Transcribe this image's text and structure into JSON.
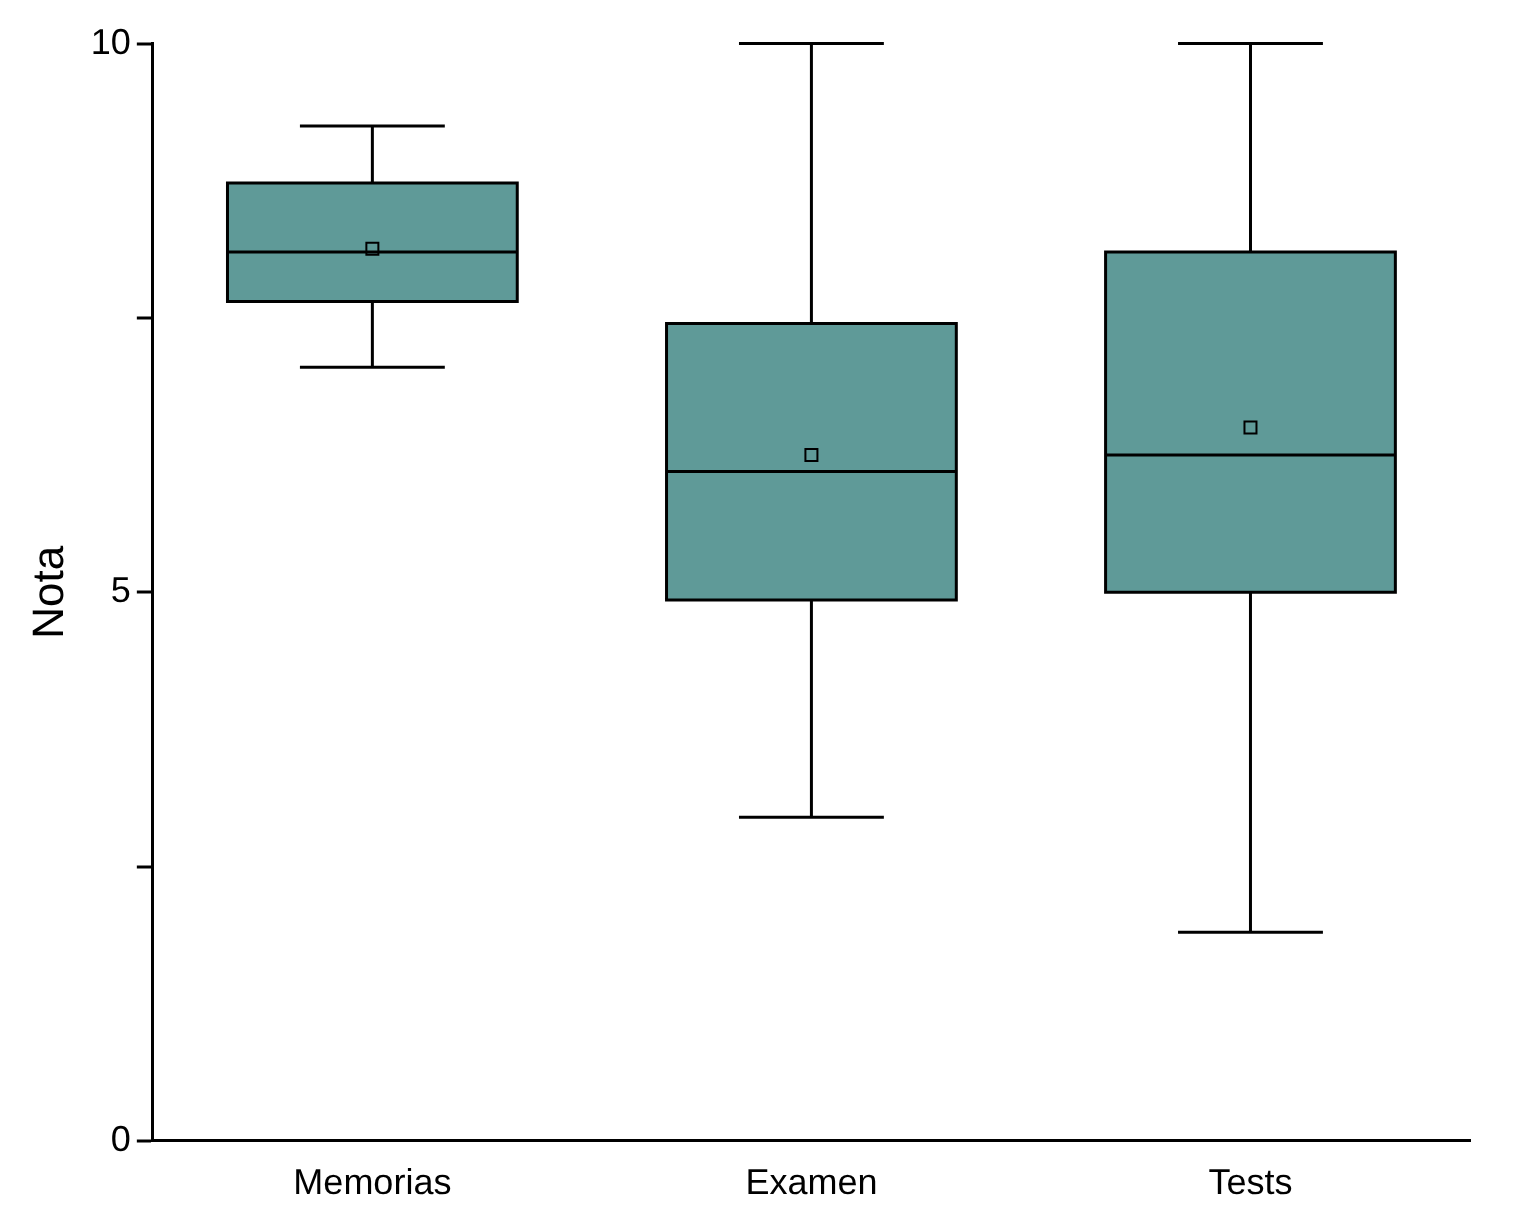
{
  "chart_data": {
    "type": "box",
    "ylabel": "Nota",
    "categories": [
      "Memorias",
      "Examen",
      "Tests"
    ],
    "color": "#5f9a98",
    "boxes": [
      {
        "low": 7.05,
        "q1": 7.65,
        "median": 8.1,
        "q3": 8.73,
        "high": 9.25,
        "mean": 8.13
      },
      {
        "low": 2.95,
        "q1": 4.93,
        "median": 6.1,
        "q3": 7.45,
        "high": 10,
        "mean": 6.25
      },
      {
        "low": 1.9,
        "q1": 5,
        "median": 6.25,
        "q3": 8.1,
        "high": 10,
        "mean": 6.5
      }
    ],
    "ylim": [
      0,
      10
    ],
    "yticks": [
      0,
      {
        "value": 2.5,
        "label": null
      },
      5,
      {
        "value": 7.5,
        "label": null
      },
      10
    ],
    "grid": false,
    "legend": false
  }
}
